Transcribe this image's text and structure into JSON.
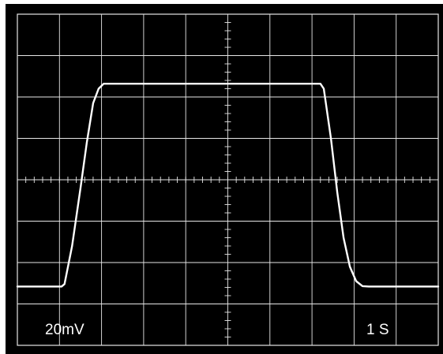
{
  "chart_data": {
    "type": "line",
    "grid": true,
    "grid_divisions": {
      "x": 10,
      "y": 8
    },
    "subdivisions_per_division": 5,
    "colors": {
      "screen": "#000000",
      "grid": "#e6e6e6",
      "trace": "#ffffff",
      "bezel": "#ffffff"
    },
    "volts_per_division_label": "20mV",
    "time_per_division_label": "1 S",
    "xlim": [
      0,
      10
    ],
    "ylim": [
      -4,
      4
    ],
    "series": [
      {
        "values": [
          {
            "x": 0.0,
            "y": -2.58
          },
          {
            "x": 1.05,
            "y": -2.58
          },
          {
            "x": 1.12,
            "y": -2.52
          },
          {
            "x": 1.3,
            "y": -1.6
          },
          {
            "x": 1.5,
            "y": -0.2
          },
          {
            "x": 1.65,
            "y": 0.9
          },
          {
            "x": 1.8,
            "y": 1.85
          },
          {
            "x": 1.93,
            "y": 2.2
          },
          {
            "x": 2.05,
            "y": 2.32
          },
          {
            "x": 7.2,
            "y": 2.32
          },
          {
            "x": 7.28,
            "y": 2.2
          },
          {
            "x": 7.45,
            "y": 1.0
          },
          {
            "x": 7.6,
            "y": -0.3
          },
          {
            "x": 7.75,
            "y": -1.4
          },
          {
            "x": 7.9,
            "y": -2.1
          },
          {
            "x": 8.05,
            "y": -2.45
          },
          {
            "x": 8.2,
            "y": -2.57
          },
          {
            "x": 8.35,
            "y": -2.58
          },
          {
            "x": 10.0,
            "y": -2.58
          }
        ]
      }
    ]
  }
}
